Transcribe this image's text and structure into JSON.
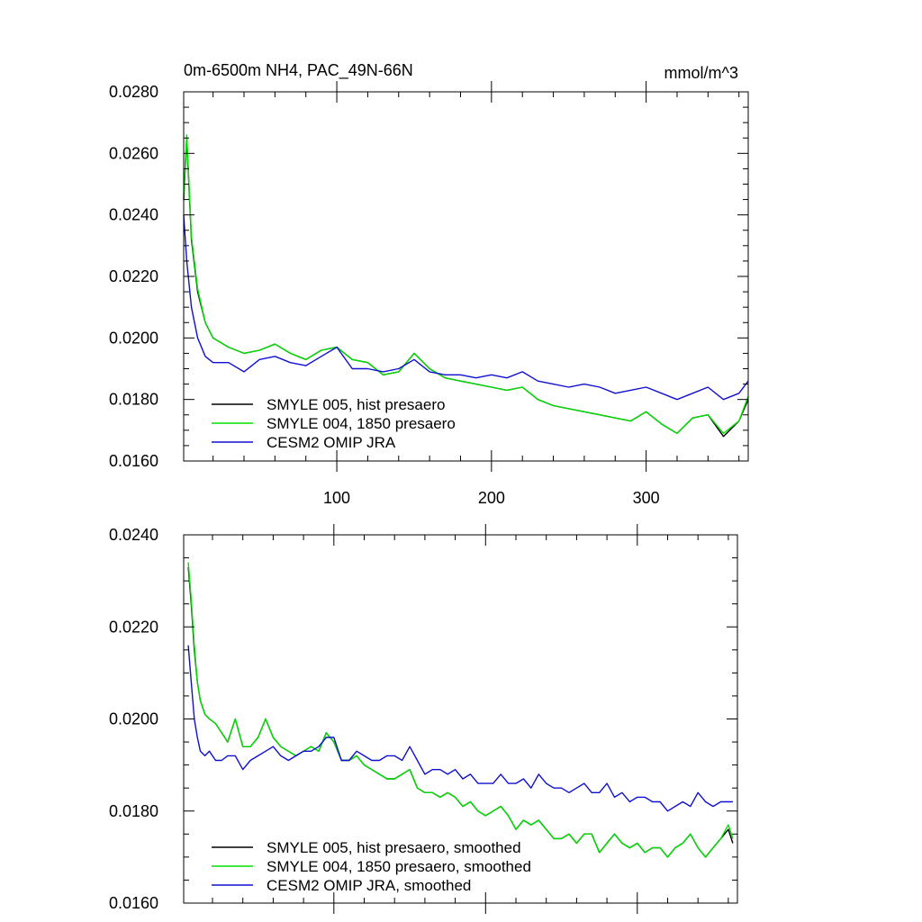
{
  "colors": {
    "smyle005": "#000000",
    "smyle004": "#00e000",
    "cesm2": "#1010d0",
    "axis": "#000000",
    "background": "#ffffff"
  },
  "chart_data": [
    {
      "type": "line",
      "title": "0m-6500m NH4, PAC_49N-66N",
      "units_label": "mmol/m^3",
      "xlabel": "",
      "ylabel": "",
      "xlim": [
        1,
        366
      ],
      "ylim": [
        0.016,
        0.028
      ],
      "x_ticks": [
        100,
        200,
        300
      ],
      "x_tick_labels": [
        "100",
        "200",
        "300"
      ],
      "y_ticks": [
        0.016,
        0.018,
        0.02,
        0.022,
        0.024,
        0.026,
        0.028
      ],
      "y_tick_labels": [
        "0.0160",
        "0.0180",
        "0.0200",
        "0.0220",
        "0.0240",
        "0.0260",
        "0.0280"
      ],
      "grid": false,
      "legend_placement": "bottom-left",
      "series": [
        {
          "name": "SMYLE 005, hist presaero",
          "color": "#000000",
          "x": [
            1,
            3,
            6,
            10,
            15,
            20,
            30,
            40,
            50,
            60,
            70,
            80,
            90,
            100,
            110,
            120,
            130,
            140,
            150,
            160,
            170,
            180,
            190,
            200,
            210,
            220,
            230,
            240,
            250,
            260,
            270,
            280,
            290,
            300,
            310,
            320,
            330,
            340,
            350,
            360,
            366
          ],
          "y": [
            0.0245,
            0.0265,
            0.0232,
            0.0215,
            0.0205,
            0.02,
            0.0197,
            0.0195,
            0.0196,
            0.0198,
            0.0195,
            0.0193,
            0.0196,
            0.0197,
            0.0193,
            0.0192,
            0.0188,
            0.0189,
            0.0195,
            0.019,
            0.0187,
            0.0186,
            0.0185,
            0.0184,
            0.0183,
            0.0184,
            0.018,
            0.0178,
            0.0177,
            0.0176,
            0.0175,
            0.0174,
            0.0173,
            0.0176,
            0.0172,
            0.0169,
            0.0174,
            0.0175,
            0.0168,
            0.0173,
            0.018
          ]
        },
        {
          "name": "SMYLE 004, 1850 presaero",
          "color": "#00e000",
          "x": [
            1,
            3,
            6,
            10,
            15,
            20,
            30,
            40,
            50,
            60,
            70,
            80,
            90,
            100,
            110,
            120,
            130,
            140,
            150,
            160,
            170,
            180,
            190,
            200,
            210,
            220,
            230,
            240,
            250,
            260,
            270,
            280,
            290,
            300,
            310,
            320,
            330,
            340,
            350,
            360,
            366
          ],
          "y": [
            0.0246,
            0.0266,
            0.0233,
            0.0216,
            0.0205,
            0.02,
            0.0197,
            0.0195,
            0.0196,
            0.0198,
            0.0195,
            0.0193,
            0.0196,
            0.0197,
            0.0193,
            0.0192,
            0.0188,
            0.0189,
            0.0195,
            0.019,
            0.0187,
            0.0186,
            0.0185,
            0.0184,
            0.0183,
            0.0184,
            0.018,
            0.0178,
            0.0177,
            0.0176,
            0.0175,
            0.0174,
            0.0173,
            0.0176,
            0.0172,
            0.0169,
            0.0174,
            0.0175,
            0.0169,
            0.0173,
            0.0181
          ]
        },
        {
          "name": "CESM2 OMIP JRA",
          "color": "#1010d0",
          "x": [
            1,
            3,
            6,
            10,
            15,
            20,
            30,
            40,
            50,
            60,
            70,
            80,
            90,
            100,
            110,
            120,
            130,
            140,
            150,
            160,
            170,
            180,
            190,
            200,
            210,
            220,
            230,
            240,
            250,
            260,
            270,
            280,
            290,
            300,
            310,
            320,
            330,
            340,
            350,
            360,
            366
          ],
          "y": [
            0.024,
            0.0225,
            0.021,
            0.02,
            0.0194,
            0.0192,
            0.0192,
            0.0189,
            0.0193,
            0.0194,
            0.0192,
            0.0191,
            0.0194,
            0.0197,
            0.019,
            0.019,
            0.0189,
            0.019,
            0.0193,
            0.0189,
            0.0188,
            0.0188,
            0.0187,
            0.0188,
            0.0187,
            0.0189,
            0.0186,
            0.0185,
            0.0184,
            0.0185,
            0.0184,
            0.0182,
            0.0183,
            0.0184,
            0.0182,
            0.018,
            0.0182,
            0.0184,
            0.018,
            0.0182,
            0.0186
          ]
        }
      ]
    },
    {
      "type": "line",
      "title": "",
      "xlabel": "",
      "ylabel": "",
      "xlim": [
        1,
        366
      ],
      "ylim": [
        0.016,
        0.024
      ],
      "x_ticks": [
        100,
        200,
        300
      ],
      "x_tick_labels": [],
      "y_ticks": [
        0.016,
        0.018,
        0.02,
        0.022,
        0.024
      ],
      "y_tick_labels": [
        "0.0160",
        "0.0180",
        "0.0200",
        "0.0220",
        "0.0240"
      ],
      "grid": false,
      "legend_placement": "bottom-left",
      "series": [
        {
          "name": "SMYLE 005, hist presaero, smoothed",
          "color": "#000000",
          "x": [
            4,
            6,
            8,
            10,
            12,
            15,
            18,
            22,
            26,
            30,
            35,
            40,
            45,
            50,
            55,
            60,
            65,
            70,
            75,
            80,
            85,
            90,
            95,
            100,
            105,
            110,
            115,
            120,
            125,
            130,
            135,
            140,
            145,
            150,
            155,
            160,
            165,
            170,
            175,
            180,
            185,
            190,
            195,
            200,
            205,
            210,
            215,
            220,
            225,
            230,
            235,
            240,
            245,
            250,
            255,
            260,
            265,
            270,
            275,
            280,
            285,
            290,
            295,
            300,
            305,
            310,
            315,
            320,
            325,
            330,
            335,
            340,
            345,
            350,
            355,
            360,
            363
          ],
          "y": [
            0.0233,
            0.0225,
            0.0215,
            0.0208,
            0.0204,
            0.0201,
            0.02,
            0.0199,
            0.0197,
            0.0195,
            0.02,
            0.0194,
            0.0194,
            0.0196,
            0.02,
            0.0196,
            0.0194,
            0.0193,
            0.0192,
            0.0193,
            0.0194,
            0.0193,
            0.0197,
            0.0195,
            0.0191,
            0.0191,
            0.0192,
            0.019,
            0.0189,
            0.0188,
            0.0187,
            0.0187,
            0.0188,
            0.0189,
            0.0185,
            0.0184,
            0.0184,
            0.0183,
            0.0184,
            0.0183,
            0.0181,
            0.0182,
            0.018,
            0.0179,
            0.018,
            0.0181,
            0.0179,
            0.0176,
            0.0178,
            0.0177,
            0.0178,
            0.0176,
            0.0174,
            0.0174,
            0.0175,
            0.0173,
            0.0175,
            0.0175,
            0.0171,
            0.0173,
            0.0175,
            0.0173,
            0.0172,
            0.0173,
            0.0171,
            0.0172,
            0.0172,
            0.017,
            0.0172,
            0.0173,
            0.0175,
            0.0172,
            0.017,
            0.0172,
            0.0174,
            0.0176,
            0.0173
          ]
        },
        {
          "name": "SMYLE 004, 1850 presaero, smoothed",
          "color": "#00e000",
          "x": [
            4,
            6,
            8,
            10,
            12,
            15,
            18,
            22,
            26,
            30,
            35,
            40,
            45,
            50,
            55,
            60,
            65,
            70,
            75,
            80,
            85,
            90,
            95,
            100,
            105,
            110,
            115,
            120,
            125,
            130,
            135,
            140,
            145,
            150,
            155,
            160,
            165,
            170,
            175,
            180,
            185,
            190,
            195,
            200,
            205,
            210,
            215,
            220,
            225,
            230,
            235,
            240,
            245,
            250,
            255,
            260,
            265,
            270,
            275,
            280,
            285,
            290,
            295,
            300,
            305,
            310,
            315,
            320,
            325,
            330,
            335,
            340,
            345,
            350,
            355,
            360,
            363
          ],
          "y": [
            0.0234,
            0.0226,
            0.0216,
            0.0208,
            0.0204,
            0.0201,
            0.02,
            0.0199,
            0.0197,
            0.0195,
            0.02,
            0.0194,
            0.0194,
            0.0196,
            0.02,
            0.0196,
            0.0194,
            0.0193,
            0.0192,
            0.0193,
            0.0194,
            0.0193,
            0.0197,
            0.0195,
            0.0191,
            0.0191,
            0.0192,
            0.019,
            0.0189,
            0.0188,
            0.0187,
            0.0187,
            0.0188,
            0.0189,
            0.0185,
            0.0184,
            0.0184,
            0.0183,
            0.0184,
            0.0183,
            0.0181,
            0.0182,
            0.018,
            0.0179,
            0.018,
            0.0181,
            0.0179,
            0.0176,
            0.0178,
            0.0177,
            0.0178,
            0.0176,
            0.0174,
            0.0174,
            0.0175,
            0.0173,
            0.0175,
            0.0175,
            0.0171,
            0.0173,
            0.0175,
            0.0173,
            0.0172,
            0.0173,
            0.0171,
            0.0172,
            0.0172,
            0.017,
            0.0172,
            0.0173,
            0.0175,
            0.0172,
            0.017,
            0.0172,
            0.0174,
            0.0177,
            0.0174
          ]
        },
        {
          "name": "CESM2 OMIP JRA, smoothed",
          "color": "#1010d0",
          "x": [
            4,
            6,
            8,
            10,
            12,
            15,
            18,
            22,
            26,
            30,
            35,
            40,
            45,
            50,
            55,
            60,
            65,
            70,
            75,
            80,
            85,
            90,
            95,
            100,
            105,
            110,
            115,
            120,
            125,
            130,
            135,
            140,
            145,
            150,
            155,
            160,
            165,
            170,
            175,
            180,
            185,
            190,
            195,
            200,
            205,
            210,
            215,
            220,
            225,
            230,
            235,
            240,
            245,
            250,
            255,
            260,
            265,
            270,
            275,
            280,
            285,
            290,
            295,
            300,
            305,
            310,
            315,
            320,
            325,
            330,
            335,
            340,
            345,
            350,
            355,
            360,
            363
          ],
          "y": [
            0.0216,
            0.0208,
            0.02,
            0.0196,
            0.0193,
            0.0192,
            0.0193,
            0.0191,
            0.0191,
            0.0192,
            0.0192,
            0.0189,
            0.0191,
            0.0192,
            0.0193,
            0.0194,
            0.0192,
            0.0191,
            0.0192,
            0.0193,
            0.0193,
            0.0194,
            0.0196,
            0.0196,
            0.0191,
            0.0191,
            0.0193,
            0.0192,
            0.0191,
            0.0191,
            0.0192,
            0.0192,
            0.0191,
            0.0194,
            0.0191,
            0.0188,
            0.0189,
            0.0189,
            0.0188,
            0.0189,
            0.0187,
            0.0188,
            0.0186,
            0.0186,
            0.0186,
            0.0188,
            0.0186,
            0.0186,
            0.0187,
            0.0185,
            0.0188,
            0.0186,
            0.0185,
            0.0185,
            0.0184,
            0.0185,
            0.0186,
            0.0184,
            0.0184,
            0.0186,
            0.0183,
            0.0184,
            0.0182,
            0.0183,
            0.0183,
            0.0182,
            0.0182,
            0.018,
            0.0181,
            0.0182,
            0.0181,
            0.0184,
            0.0182,
            0.0181,
            0.0182,
            0.0182,
            0.0182
          ]
        }
      ]
    }
  ]
}
